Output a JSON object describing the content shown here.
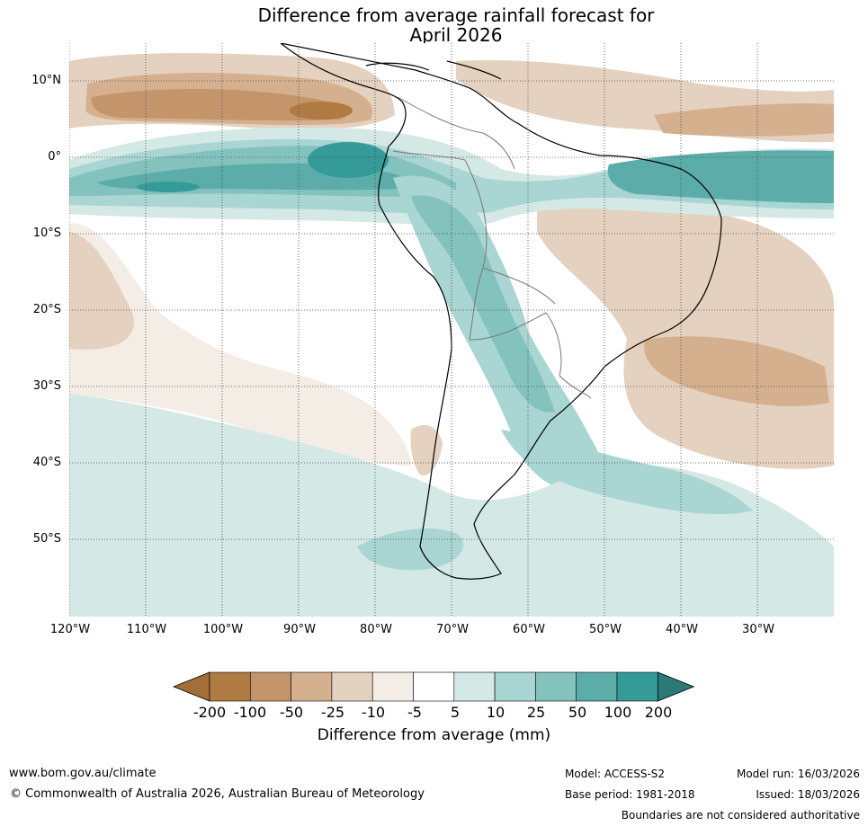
{
  "title": {
    "line1": "Difference from average rainfall forecast for",
    "line2": "April 2026"
  },
  "map": {
    "region": "South America",
    "lat_labels": [
      "10°N",
      "0°",
      "10°S",
      "20°S",
      "30°S",
      "40°S",
      "50°S"
    ],
    "lon_labels": [
      "120°W",
      "110°W",
      "100°W",
      "90°W",
      "80°W",
      "70°W",
      "60°W",
      "50°W",
      "40°W",
      "30°W"
    ]
  },
  "legend": {
    "ticks": [
      "-200",
      "-100",
      "-50",
      "-25",
      "-10",
      "-5",
      "5",
      "10",
      "25",
      "50",
      "100",
      "200"
    ],
    "colors": [
      "#a36e3a",
      "#b07a43",
      "#c4956a",
      "#d4b08f",
      "#e5d1bf",
      "#f3ede6",
      "#ffffff",
      "#d4e8e6",
      "#a9d5d2",
      "#84c2be",
      "#5cadaa",
      "#359b98",
      "#2a7a78"
    ],
    "label": "Difference from average (mm)"
  },
  "footer": {
    "url": "www.bom.gov.au/climate",
    "copyright": "© Commonwealth of Australia 2026, Australian Bureau of Meteorology",
    "model": "Model: ACCESS-S2",
    "base_period": "Base period: 1981-2018",
    "model_run": "Model run: 16/03/2026",
    "issued": "Issued: 18/03/2026",
    "disclaimer": "Boundaries are not considered authoritative"
  }
}
